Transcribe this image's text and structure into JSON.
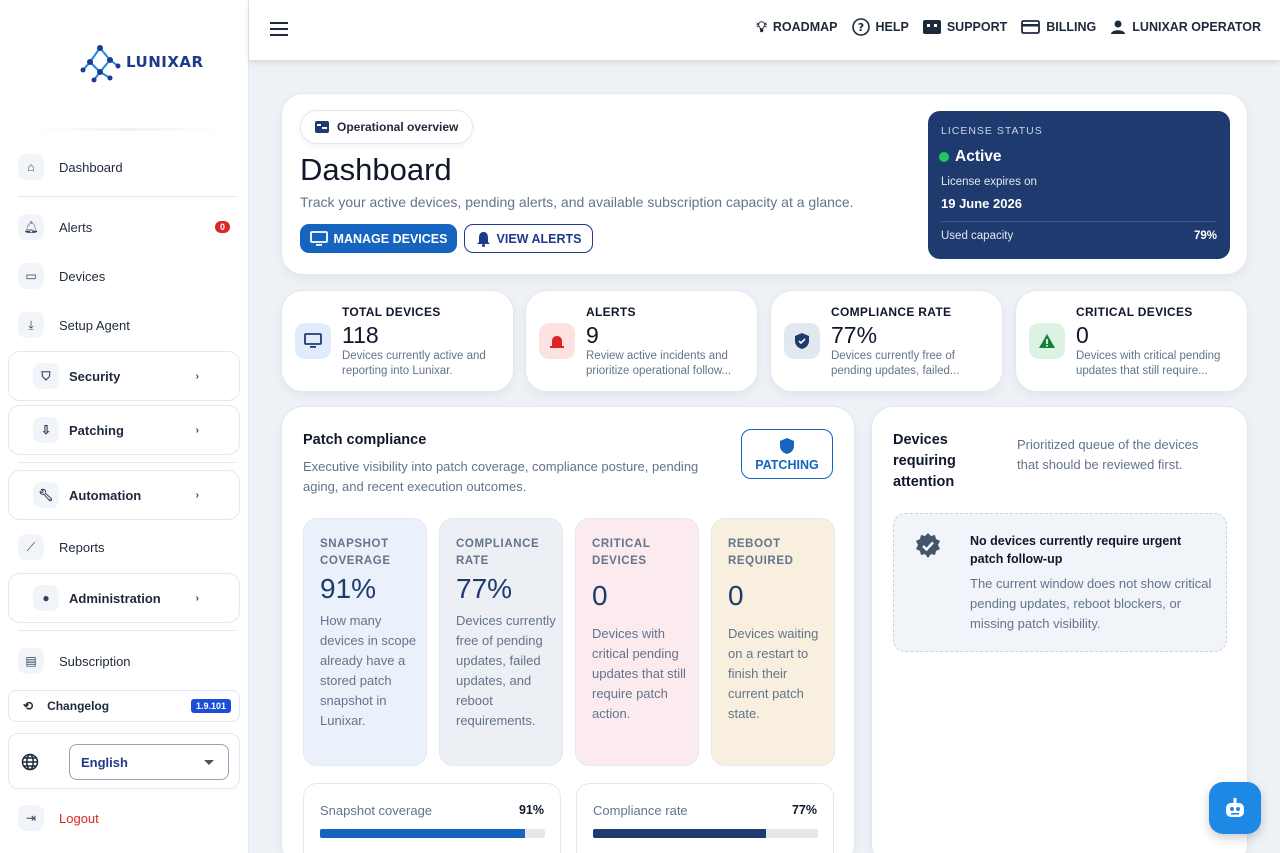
{
  "brand": {
    "name": "LUNIXAR"
  },
  "sidebar": {
    "items": [
      {
        "label": "Dashboard"
      },
      {
        "label": "Alerts",
        "badge": "0"
      },
      {
        "label": "Devices"
      },
      {
        "label": "Setup Agent"
      },
      {
        "label": "Security"
      },
      {
        "label": "Patching"
      },
      {
        "label": "Automation"
      },
      {
        "label": "Reports"
      },
      {
        "label": "Administration"
      },
      {
        "label": "Subscription"
      }
    ],
    "changelog": {
      "label": "Changelog",
      "version": "1.9.101"
    },
    "language": {
      "selected": "English"
    },
    "logout": "Logout"
  },
  "topbar": {
    "links": [
      {
        "label": "ROADMAP",
        "icon": "lightbulb-icon"
      },
      {
        "label": "HELP",
        "icon": "help-icon"
      },
      {
        "label": "SUPPORT",
        "icon": "support-icon"
      },
      {
        "label": "BILLING",
        "icon": "credit-card-icon"
      },
      {
        "label": "LUNIXAR OPERATOR",
        "icon": "user-icon"
      }
    ]
  },
  "hero": {
    "pill": "Operational overview",
    "title": "Dashboard",
    "subtitle": "Track your active devices, pending alerts, and available subscription capacity at a glance.",
    "primary_button": "MANAGE DEVICES",
    "secondary_button": "VIEW ALERTS"
  },
  "license": {
    "label": "LICENSE STATUS",
    "status": "Active",
    "expires_label": "License expires on",
    "expires_date": "19 June 2026",
    "capacity_label": "Used capacity",
    "capacity_value": "79%"
  },
  "stats": [
    {
      "title": "TOTAL DEVICES",
      "value": "118",
      "desc": "Devices currently active and reporting into Lunixar."
    },
    {
      "title": "ALERTS",
      "value": "9",
      "desc": "Review active incidents and prioritize operational follow..."
    },
    {
      "title": "COMPLIANCE RATE",
      "value": "77%",
      "desc": "Devices currently free of pending updates, failed..."
    },
    {
      "title": "CRITICAL DEVICES",
      "value": "0",
      "desc": "Devices with critical pending updates that still require..."
    }
  ],
  "patch": {
    "title": "Patch compliance",
    "subtitle": "Executive visibility into patch coverage, compliance posture, pending aging, and recent execution outcomes.",
    "button": "PATCHING",
    "tiles": [
      {
        "title": "SNAPSHOT COVERAGE",
        "value": "91%",
        "desc": "How many devices in scope already have a stored patch snapshot in Lunixar."
      },
      {
        "title": "COMPLIANCE RATE",
        "value": "77%",
        "desc": "Devices currently free of pending updates, failed updates, and reboot requirements."
      },
      {
        "title": "CRITICAL DEVICES",
        "value": "0",
        "desc": "Devices with critical pending updates that still require patch action."
      },
      {
        "title": "REBOOT REQUIRED",
        "value": "0",
        "desc": "Devices waiting on a restart to finish their current patch state."
      }
    ],
    "progress": [
      {
        "label": "Snapshot coverage",
        "value": "91%",
        "fraction": 0.91,
        "color": "#1565c0"
      },
      {
        "label": "Compliance rate",
        "value": "77%",
        "fraction": 0.77,
        "color": "#1e3a6e"
      }
    ]
  },
  "attention": {
    "title": "Devices requiring attention",
    "subtitle": "Prioritized queue of the devices that should be reviewed first.",
    "empty_title": "No devices currently require urgent patch follow-up",
    "empty_desc": "The current window does not show critical pending updates, reboot blockers, or missing patch visibility."
  },
  "colors": {
    "primary": "#1565c0",
    "navy": "#1e3a6e",
    "danger": "#dc2626",
    "success": "#22c55e"
  }
}
